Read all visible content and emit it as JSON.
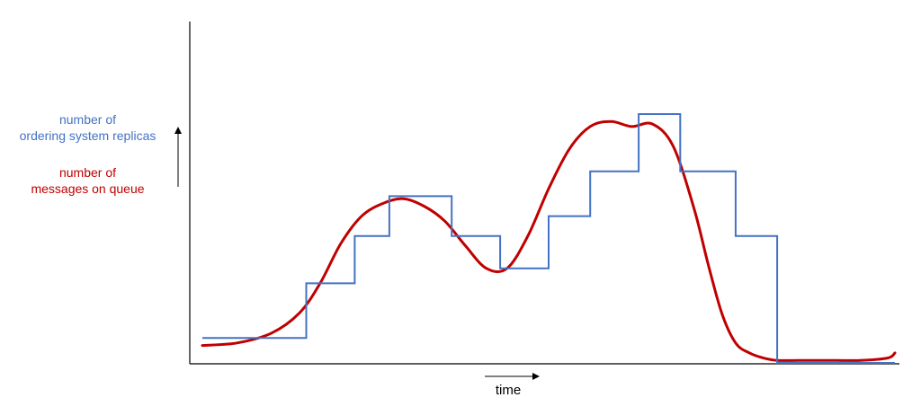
{
  "labels": {
    "replicas_line1": "number of",
    "replicas_line2": "ordering system replicas",
    "messages_line1": "number of",
    "messages_line2": "messages on queue",
    "x_axis": "time"
  },
  "colors": {
    "replicas": "#4472c4",
    "messages": "#c00000",
    "axis": "#000000",
    "background": "#ffffff"
  },
  "chart_data": {
    "type": "line",
    "xlabel": "time",
    "ylabel": "",
    "series": [
      {
        "name": "number of ordering system replicas",
        "style": "step",
        "breakpoints": [
          0.0,
          0.15,
          0.22,
          0.27,
          0.36,
          0.43,
          0.5,
          0.56,
          0.63,
          0.69,
          0.77,
          0.83,
          0.91,
          1.0
        ],
        "values": [
          0.1,
          0.32,
          0.51,
          0.67,
          0.51,
          0.38,
          0.59,
          0.77,
          1.0,
          0.77,
          0.51,
          0.0,
          0.0
        ]
      },
      {
        "name": "number of messages on queue",
        "style": "smooth",
        "x": [
          0.0,
          0.05,
          0.1,
          0.14,
          0.17,
          0.2,
          0.23,
          0.26,
          0.29,
          0.32,
          0.35,
          0.38,
          0.41,
          0.44,
          0.47,
          0.5,
          0.53,
          0.56,
          0.59,
          0.62,
          0.65,
          0.68,
          0.71,
          0.73,
          0.75,
          0.77,
          0.79,
          0.81,
          0.83,
          0.86,
          0.9,
          0.95,
          0.99,
          1.0
        ],
        "values": [
          0.07,
          0.08,
          0.12,
          0.2,
          0.32,
          0.48,
          0.59,
          0.64,
          0.66,
          0.63,
          0.57,
          0.47,
          0.38,
          0.38,
          0.51,
          0.7,
          0.86,
          0.95,
          0.97,
          0.95,
          0.96,
          0.87,
          0.62,
          0.4,
          0.2,
          0.08,
          0.04,
          0.02,
          0.01,
          0.01,
          0.01,
          0.01,
          0.02,
          0.04
        ]
      }
    ]
  }
}
